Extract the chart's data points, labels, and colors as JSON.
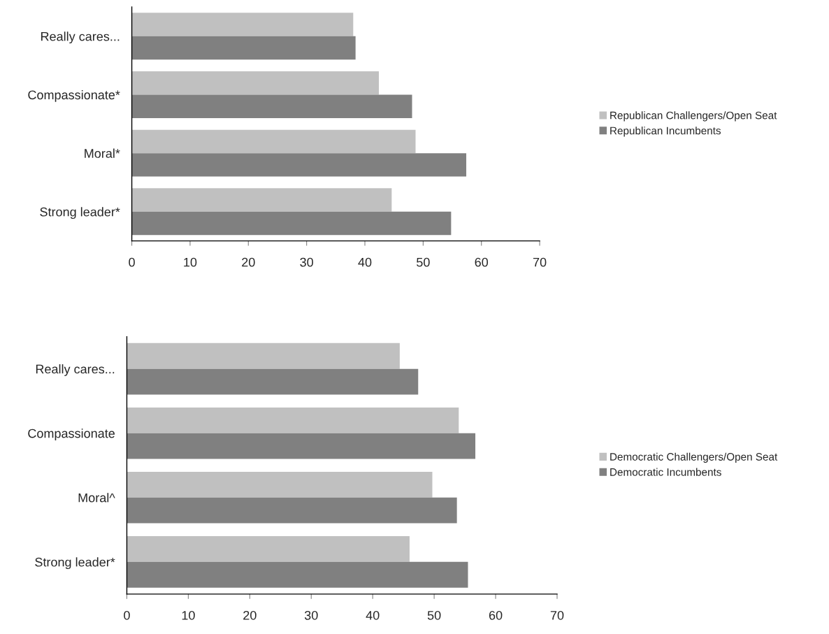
{
  "chart_data": [
    {
      "type": "bar",
      "orientation": "horizontal",
      "categories": [
        "Really cares...",
        "Compassionate*",
        "Moral*",
        "Strong leader*"
      ],
      "xlim": [
        0,
        70
      ],
      "xticks": [
        0,
        10,
        20,
        30,
        40,
        50,
        60,
        70
      ],
      "grid": false,
      "legend": "right",
      "series": [
        {
          "name": "Republican Challengers/Open Seat",
          "color": "#c0c0c0",
          "values": [
            38.0,
            42.4,
            48.7,
            44.6
          ]
        },
        {
          "name": "Republican Incumbents",
          "color": "#808080",
          "values": [
            38.4,
            48.1,
            57.4,
            54.8
          ]
        }
      ]
    },
    {
      "type": "bar",
      "orientation": "horizontal",
      "categories": [
        "Really cares...",
        "Compassionate",
        "Moral^",
        "Strong leader*"
      ],
      "xlim": [
        0,
        70
      ],
      "xticks": [
        0,
        10,
        20,
        30,
        40,
        50,
        60,
        70
      ],
      "grid": false,
      "legend": "right",
      "series": [
        {
          "name": "Democratic Challengers/Open Seat",
          "color": "#c0c0c0",
          "values": [
            44.4,
            54.0,
            49.7,
            46.0
          ]
        },
        {
          "name": "Democratic Incumbents",
          "color": "#808080",
          "values": [
            47.4,
            56.7,
            53.7,
            55.5
          ]
        }
      ]
    }
  ]
}
